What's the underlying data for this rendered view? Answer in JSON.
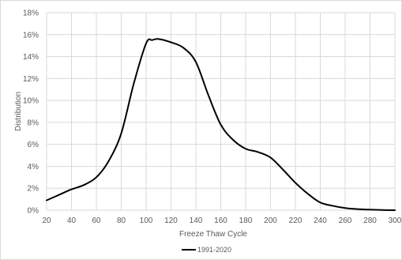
{
  "chart_data": {
    "type": "line",
    "title": "",
    "xlabel": "Freeze Thaw Cycle",
    "ylabel": "Distribution",
    "xlim": [
      20,
      300
    ],
    "ylim": [
      0,
      18
    ],
    "x_ticks": [
      20,
      40,
      60,
      80,
      100,
      120,
      140,
      160,
      180,
      200,
      220,
      240,
      260,
      280,
      300
    ],
    "y_ticks": [
      0,
      2,
      4,
      6,
      8,
      10,
      12,
      14,
      16,
      18
    ],
    "y_tick_labels": [
      "0%",
      "2%",
      "4%",
      "6%",
      "8%",
      "10%",
      "12%",
      "14%",
      "16%",
      "18%"
    ],
    "grid": true,
    "legend_position": "bottom",
    "series": [
      {
        "name": "1991-2020",
        "color": "#000000",
        "x": [
          20,
          30,
          40,
          50,
          60,
          70,
          80,
          90,
          100,
          105,
          110,
          120,
          130,
          140,
          150,
          160,
          170,
          180,
          190,
          200,
          210,
          220,
          230,
          240,
          250,
          260,
          270,
          280,
          290,
          300
        ],
        "y": [
          0.9,
          1.4,
          1.9,
          2.3,
          3.0,
          4.5,
          7.0,
          11.5,
          15.2,
          15.5,
          15.6,
          15.3,
          14.8,
          13.5,
          10.5,
          7.8,
          6.4,
          5.6,
          5.3,
          4.8,
          3.7,
          2.5,
          1.5,
          0.7,
          0.4,
          0.2,
          0.1,
          0.05,
          0.02,
          0.0
        ]
      }
    ]
  }
}
